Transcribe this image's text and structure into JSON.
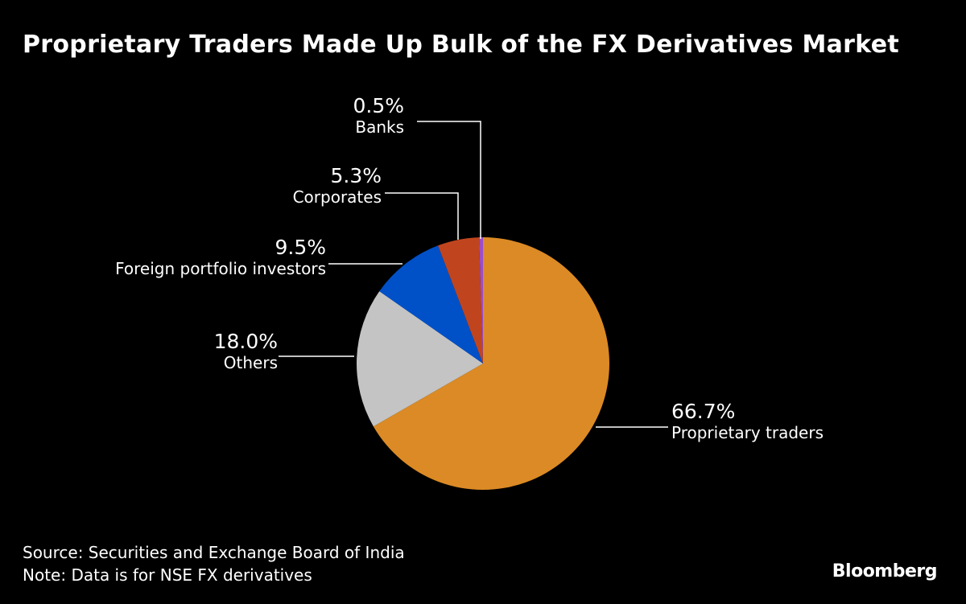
{
  "chart_data": {
    "type": "pie",
    "title": "Proprietary Traders Made Up Bulk of the FX Derivatives Market",
    "slices": [
      {
        "label": "Proprietary traders",
        "value": 66.7,
        "display": "66.7%",
        "color": "#DB8A25"
      },
      {
        "label": "Others",
        "value": 18.0,
        "display": "18.0%",
        "color": "#C4C4C4"
      },
      {
        "label": "Foreign portfolio investors",
        "value": 9.5,
        "display": "9.5%",
        "color": "#0050C8"
      },
      {
        "label": "Corporates",
        "value": 5.3,
        "display": "5.3%",
        "color": "#C0451F"
      },
      {
        "label": "Banks",
        "value": 0.5,
        "display": "0.5%",
        "color": "#9B4DCA"
      }
    ]
  },
  "footer": {
    "source": "Source: Securities and Exchange Board of India",
    "note": "Note: Data is for NSE FX derivatives"
  },
  "brand": "Bloomberg"
}
